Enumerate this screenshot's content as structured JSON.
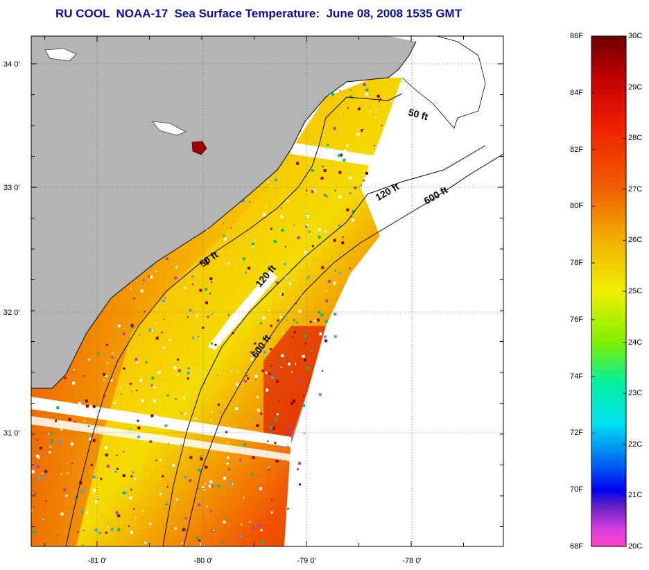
{
  "title": "RU COOL  NOAA-17  Sea Surface Temperature:  June 08, 2008 1535 GMT",
  "map": {
    "lat_ticks": [
      "34 0'",
      "33 0'",
      "32 0'",
      "31 0'"
    ],
    "lon_ticks": [
      "-81 0'",
      "-80 0'",
      "-79 0'",
      "-78 0'"
    ],
    "contour_labels": [
      "50 ft",
      "120 ft",
      "600 ft",
      "50 ft",
      "120 ft",
      "600 ft"
    ],
    "colors": {
      "land": "#b4b4b4",
      "water_nodata": "#ffffff"
    }
  },
  "colorbar": {
    "f_labels": [
      "86F",
      "84F",
      "82F",
      "80F",
      "78F",
      "76F",
      "74F",
      "72F",
      "70F",
      "68F"
    ],
    "c_labels": [
      "30C",
      "29C",
      "28C",
      "27C",
      "26C",
      "25C",
      "24C",
      "23C",
      "22C",
      "21C",
      "20C"
    ],
    "range_F": [
      68,
      86
    ],
    "range_C": [
      20,
      30
    ]
  }
}
